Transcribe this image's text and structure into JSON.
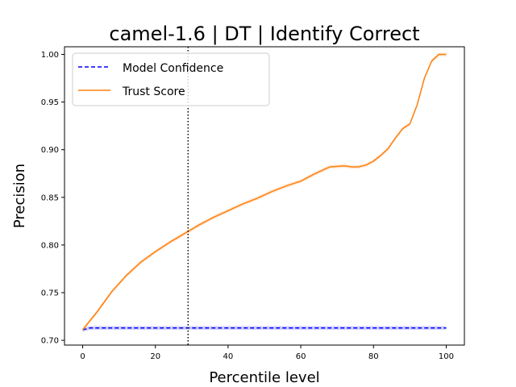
{
  "chart_data": {
    "type": "line",
    "title": "camel-1.6 | DT | Identify Correct",
    "xlabel": "Percentile level",
    "ylabel": "Precision",
    "xlim": [
      -5,
      105
    ],
    "ylim": [
      0.695,
      1.008
    ],
    "xticks": [
      0,
      20,
      40,
      60,
      80,
      100
    ],
    "yticks": [
      0.7,
      0.75,
      0.8,
      0.85,
      0.9,
      0.95,
      1.0
    ],
    "vline": {
      "x": 29,
      "style": "dotted",
      "color": "#000000"
    },
    "legend": {
      "placement": "top-left"
    },
    "grid": false,
    "series": [
      {
        "name": "Model Confidence",
        "color": "#0000ff",
        "style": "dashed",
        "band": 0.002,
        "x": [
          0,
          2,
          4,
          10,
          20,
          30,
          40,
          50,
          60,
          70,
          80,
          90,
          100
        ],
        "y": [
          0.711,
          0.713,
          0.713,
          0.713,
          0.713,
          0.713,
          0.713,
          0.713,
          0.713,
          0.713,
          0.713,
          0.713,
          0.713
        ]
      },
      {
        "name": "Trust Score",
        "color": "#ff7f0e",
        "style": "solid",
        "band": 0.002,
        "x": [
          0,
          4,
          8,
          12,
          16,
          20,
          24,
          28,
          32,
          36,
          40,
          44,
          48,
          52,
          56,
          60,
          64,
          68,
          72,
          74,
          76,
          78,
          80,
          82,
          84,
          86,
          88,
          90,
          92,
          94,
          96,
          98,
          100
        ],
        "y": [
          0.711,
          0.73,
          0.751,
          0.768,
          0.782,
          0.793,
          0.803,
          0.812,
          0.821,
          0.829,
          0.836,
          0.843,
          0.849,
          0.856,
          0.862,
          0.867,
          0.875,
          0.882,
          0.883,
          0.882,
          0.882,
          0.884,
          0.888,
          0.894,
          0.901,
          0.912,
          0.922,
          0.927,
          0.947,
          0.975,
          0.993,
          1.0,
          1.0
        ]
      }
    ]
  }
}
